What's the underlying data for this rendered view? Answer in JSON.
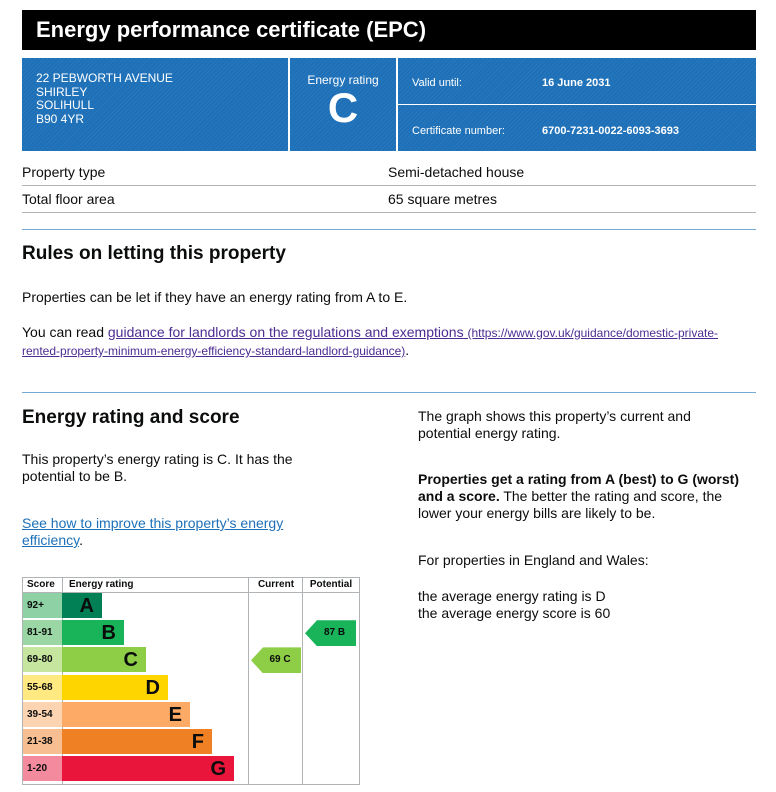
{
  "title": "Energy performance certificate (EPC)",
  "address": [
    "22 PEBWORTH AVENUE",
    "SHIRLEY",
    "SOLIHULL",
    "B90 4YR"
  ],
  "energy_rating": {
    "label": "Energy rating",
    "value": "C"
  },
  "certificate": {
    "valid_label": "Valid until:",
    "valid_value": "16 June 2031",
    "number_label": "Certificate number:",
    "number_value": "6700-7231-0022-6093-3693"
  },
  "property": [
    {
      "label": "Property type",
      "value": "Semi-detached house"
    },
    {
      "label": "Total floor area",
      "value": "65 square metres"
    }
  ],
  "letting": {
    "heading": "Rules on letting this property",
    "para1": "Properties can be let if they have an energy rating from A to E.",
    "para2_prefix": "You can read ",
    "link_text": "guidance for landlords on the regulations and exemptions",
    "link_url": "(https://www.gov.uk/guidance/domestic-private-rented-property-minimum-energy-efficiency-standard-landlord-guidance)",
    "para2_suffix": "."
  },
  "score_section": {
    "heading": "Energy rating and score",
    "para": "This property’s energy rating is C. It has the potential to be B.",
    "link_text": "See how to improve this property’s energy efficiency",
    "link_suffix": "."
  },
  "right_col": {
    "p1": "The graph shows this property’s current and potential energy rating.",
    "p2_bold": "Properties get a rating from A (best) to G (worst) and a score.",
    "p2_rest": " The better the rating and score, the lower your energy bills are likely to be.",
    "p3": "For properties in England and Wales:",
    "p4": "the average energy rating is D",
    "p5": "the average energy score is 60"
  },
  "chart_data": {
    "type": "table",
    "headers": {
      "score": "Score",
      "rating": "Energy rating",
      "current": "Current",
      "potential": "Potential"
    },
    "bands": [
      {
        "range": "92+",
        "letter": "A",
        "color": "#008054",
        "score_bg": "#8ed1a5"
      },
      {
        "range": "81-91",
        "letter": "B",
        "color": "#19b459",
        "score_bg": "#9ad7a4"
      },
      {
        "range": "69-80",
        "letter": "C",
        "color": "#8dce46",
        "score_bg": "#c6e6a0"
      },
      {
        "range": "55-68",
        "letter": "D",
        "color": "#ffd500",
        "score_bg": "#ffe980"
      },
      {
        "range": "39-54",
        "letter": "E",
        "color": "#fcaa65",
        "score_bg": "#fdd4b2"
      },
      {
        "range": "21-38",
        "letter": "F",
        "color": "#ef8023",
        "score_bg": "#f7bf91"
      },
      {
        "range": "1-20",
        "letter": "G",
        "color": "#e9153b",
        "score_bg": "#f48a9d"
      }
    ],
    "current": {
      "score": 69,
      "letter": "C",
      "label": "69 C",
      "color": "#8dce46"
    },
    "potential": {
      "score": 87,
      "letter": "B",
      "label": "87 B",
      "color": "#19b459"
    }
  }
}
